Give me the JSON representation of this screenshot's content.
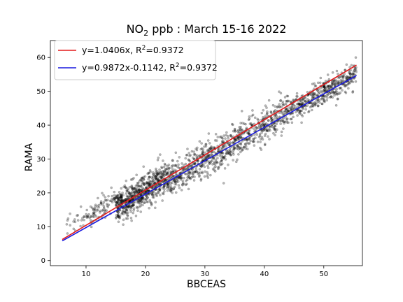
{
  "chart_data": {
    "type": "scatter",
    "title": {
      "prefix": "NO",
      "subscript": "2",
      "suffix": " ppb : March 15-16 2022"
    },
    "xlabel": "BBCEAS",
    "ylabel": "RAMA",
    "xlim": [
      4,
      56.5
    ],
    "ylim": [
      -1.5,
      65
    ],
    "xticks": [
      10,
      20,
      30,
      40,
      50
    ],
    "yticks": [
      0,
      10,
      20,
      30,
      40,
      50,
      60
    ],
    "grid": false,
    "legend_placement": "top-left",
    "scatter": {
      "color": "#000000",
      "alpha": 0.28,
      "point_groups": [
        {
          "x_range": [
            6.0,
            10.0
          ],
          "y_center_slope": 1.08,
          "y_center_intercept": 2.5,
          "spread": 1.3,
          "count": 22
        },
        {
          "x_range": [
            10.0,
            15.0
          ],
          "y_center_slope": 1.08,
          "y_center_intercept": 1.8,
          "spread": 1.8,
          "count": 90
        },
        {
          "x_range": [
            15.0,
            24.0
          ],
          "y_center_slope": 1.0,
          "y_center_intercept": 0.8,
          "spread": 2.4,
          "count": 650
        },
        {
          "x_range": [
            24.0,
            34.0
          ],
          "y_center_slope": 1.0,
          "y_center_intercept": -0.3,
          "spread": 2.6,
          "count": 420
        },
        {
          "x_range": [
            34.0,
            44.0
          ],
          "y_center_slope": 1.02,
          "y_center_intercept": -0.6,
          "spread": 2.6,
          "count": 380
        },
        {
          "x_range": [
            44.0,
            55.5
          ],
          "y_center_slope": 1.0,
          "y_center_intercept": -0.2,
          "spread": 1.9,
          "count": 420
        }
      ]
    },
    "series": [
      {
        "name_prefix": "y=1.0406x, R",
        "name_sup": "2",
        "name_suffix": "=0.9372",
        "color": "#e41a1c",
        "slope": 1.0406,
        "intercept": 0,
        "x": [
          6.0,
          55.5
        ]
      },
      {
        "name_prefix": "y=0.9872x-0.1142, R",
        "name_sup": "2",
        "name_suffix": "=0.9372",
        "color": "#1a1adf",
        "slope": 0.9872,
        "intercept": -0.1142,
        "x": [
          6.0,
          55.5
        ]
      }
    ]
  }
}
